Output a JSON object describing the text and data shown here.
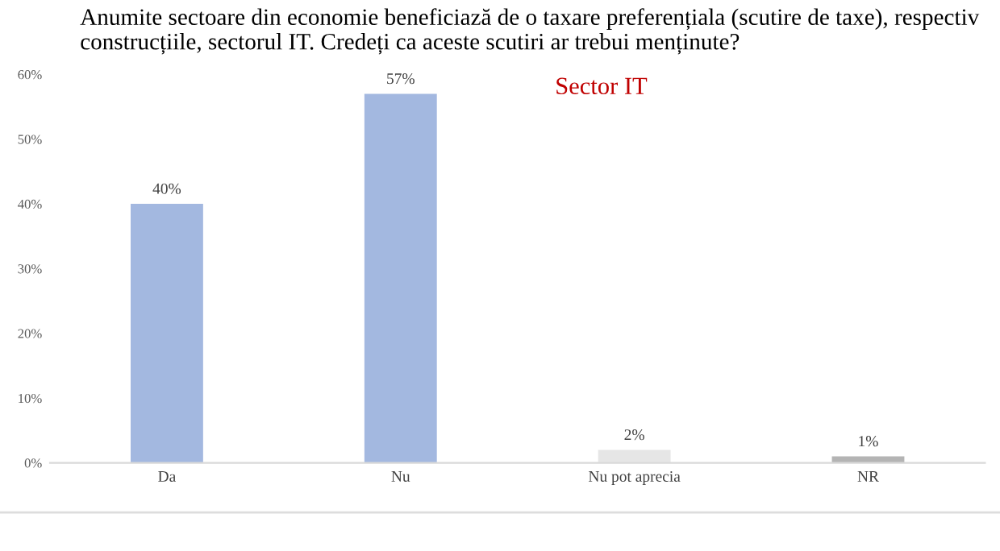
{
  "chart_data": {
    "type": "bar",
    "title": "Anumite sectoare din economie beneficiază de o taxare preferențiala (scutire de taxe), respectiv construcțiile, sectorul IT. Credeți ca aceste scutiri ar trebui menținute?",
    "annotations": [
      "Sector IT"
    ],
    "categories": [
      "Da",
      "Nu",
      "Nu pot aprecia",
      "NR"
    ],
    "values": [
      40,
      57,
      2,
      1
    ],
    "colors": [
      "#a3b8e0",
      "#a3b8e0",
      "#e6e6e6",
      "#b4b4b4"
    ],
    "value_labels": [
      "40%",
      "57%",
      "2%",
      "1%"
    ],
    "ylim": [
      0,
      60
    ],
    "yticks": [
      {
        "value": 0,
        "label": "0%"
      },
      {
        "value": 10,
        "label": "10%"
      },
      {
        "value": 20,
        "label": "20%"
      },
      {
        "value": 30,
        "label": "30%"
      },
      {
        "value": 40,
        "label": "40%"
      },
      {
        "value": 50,
        "label": "50%"
      },
      {
        "value": 60,
        "label": "60%"
      }
    ],
    "grid": false,
    "legend": false
  }
}
